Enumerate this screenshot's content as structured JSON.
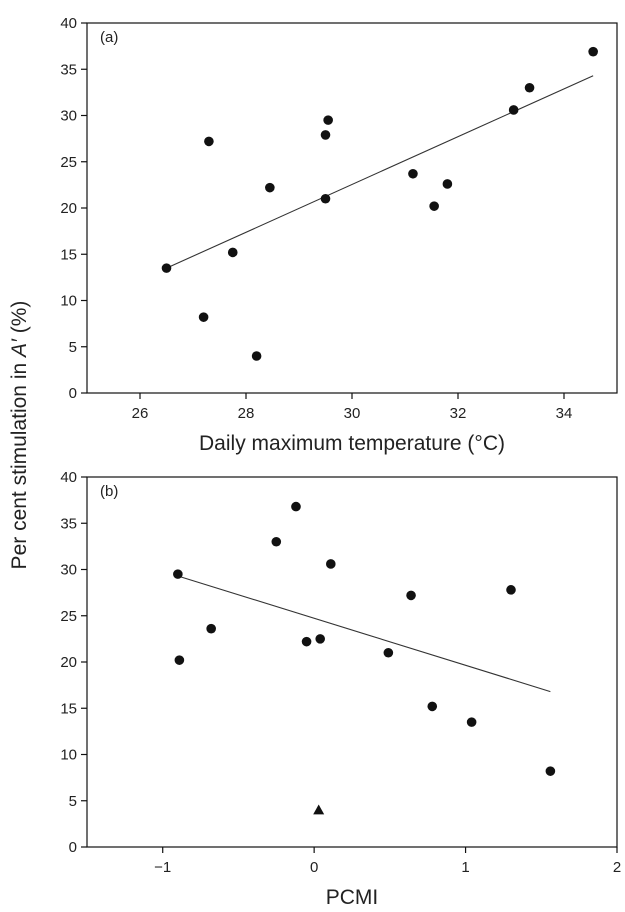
{
  "figure": {
    "ylabel_prefix": "Per cent stimulation in ",
    "ylabel_symbol": "A′",
    "ylabel_suffix": " (%)"
  },
  "chart_data": [
    {
      "type": "scatter",
      "panel_label": "(a)",
      "xlabel": "Daily maximum temperature (°C)",
      "xlim": [
        25,
        35
      ],
      "ylim": [
        0,
        40
      ],
      "xticks": [
        26,
        28,
        30,
        32,
        34
      ],
      "yticks": [
        0,
        5,
        10,
        15,
        20,
        25,
        30,
        35,
        40
      ],
      "xtick_labels": [
        "26",
        "28",
        "30",
        "32",
        "34"
      ],
      "ytick_labels": [
        "0",
        "5",
        "10",
        "15",
        "20",
        "25",
        "30",
        "35",
        "40"
      ],
      "grid": false,
      "points": [
        {
          "x": 26.5,
          "y": 13.5,
          "marker": "circle"
        },
        {
          "x": 27.2,
          "y": 8.2,
          "marker": "circle"
        },
        {
          "x": 27.3,
          "y": 27.2,
          "marker": "circle"
        },
        {
          "x": 27.75,
          "y": 15.2,
          "marker": "circle"
        },
        {
          "x": 28.2,
          "y": 4.0,
          "marker": "circle"
        },
        {
          "x": 28.45,
          "y": 22.2,
          "marker": "circle"
        },
        {
          "x": 29.5,
          "y": 21.0,
          "marker": "circle"
        },
        {
          "x": 29.5,
          "y": 27.9,
          "marker": "circle"
        },
        {
          "x": 29.55,
          "y": 29.5,
          "marker": "circle"
        },
        {
          "x": 31.15,
          "y": 23.7,
          "marker": "circle"
        },
        {
          "x": 31.55,
          "y": 20.2,
          "marker": "circle"
        },
        {
          "x": 31.8,
          "y": 22.6,
          "marker": "circle"
        },
        {
          "x": 33.05,
          "y": 30.6,
          "marker": "circle"
        },
        {
          "x": 33.35,
          "y": 33.0,
          "marker": "circle"
        },
        {
          "x": 34.55,
          "y": 36.9,
          "marker": "circle"
        }
      ],
      "fit_line": {
        "x": [
          26.5,
          34.55
        ],
        "y": [
          13.5,
          34.3
        ]
      }
    },
    {
      "type": "scatter",
      "panel_label": "(b)",
      "xlabel": "PCMI",
      "xlim": [
        -1.5,
        2
      ],
      "ylim": [
        0,
        40
      ],
      "xticks": [
        -1,
        0,
        1,
        2
      ],
      "yticks": [
        0,
        5,
        10,
        15,
        20,
        25,
        30,
        35,
        40
      ],
      "xtick_labels": [
        "−1",
        "0",
        "1",
        "2"
      ],
      "ytick_labels": [
        "0",
        "5",
        "10",
        "15",
        "20",
        "25",
        "30",
        "35",
        "40"
      ],
      "grid": false,
      "points": [
        {
          "x": -0.9,
          "y": 29.5,
          "marker": "circle"
        },
        {
          "x": -0.89,
          "y": 20.2,
          "marker": "circle"
        },
        {
          "x": -0.68,
          "y": 23.6,
          "marker": "circle"
        },
        {
          "x": -0.25,
          "y": 33.0,
          "marker": "circle"
        },
        {
          "x": -0.12,
          "y": 36.8,
          "marker": "circle"
        },
        {
          "x": -0.05,
          "y": 22.2,
          "marker": "circle"
        },
        {
          "x": 0.04,
          "y": 22.5,
          "marker": "circle"
        },
        {
          "x": 0.11,
          "y": 30.6,
          "marker": "circle"
        },
        {
          "x": 0.49,
          "y": 21.0,
          "marker": "circle"
        },
        {
          "x": 0.64,
          "y": 27.2,
          "marker": "circle"
        },
        {
          "x": 0.78,
          "y": 15.2,
          "marker": "circle"
        },
        {
          "x": 1.04,
          "y": 13.5,
          "marker": "circle"
        },
        {
          "x": 1.3,
          "y": 27.8,
          "marker": "circle"
        },
        {
          "x": 1.56,
          "y": 8.2,
          "marker": "circle"
        },
        {
          "x": 0.03,
          "y": 4.0,
          "marker": "triangle"
        }
      ],
      "fit_line": {
        "x": [
          -0.9,
          1.56
        ],
        "y": [
          29.3,
          16.8
        ]
      }
    }
  ]
}
